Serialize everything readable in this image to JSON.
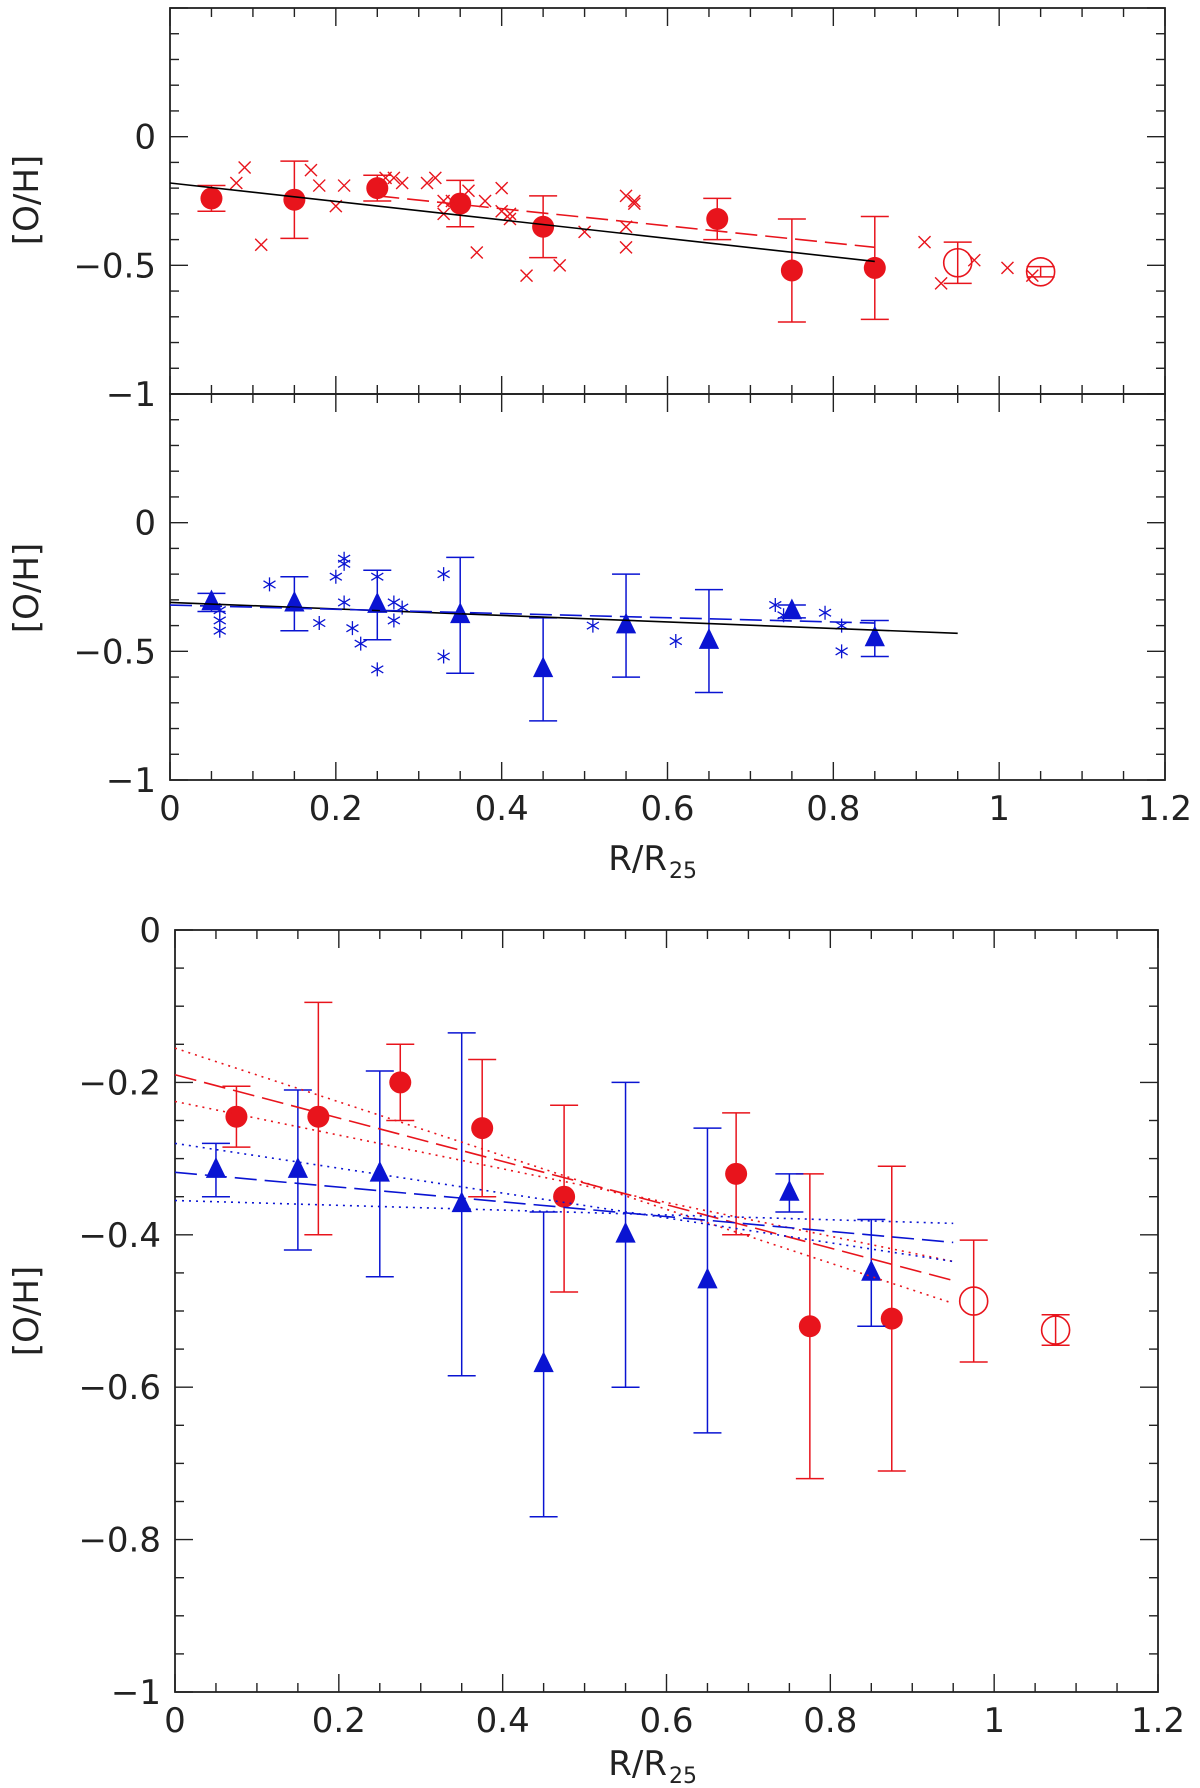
{
  "chart_data": [
    {
      "id": "panel-top",
      "type": "scatter",
      "title": "",
      "xlabel": "R/R",
      "xlabel_sub": "25",
      "ylabel": "[O/H]",
      "xlim": [
        0,
        1.2
      ],
      "ylim": [
        -1,
        0.5
      ],
      "y_ticks": [
        0,
        -0.5,
        -1
      ],
      "y_tick_labels": [
        "0",
        "−0.5",
        "−1"
      ],
      "show_x_tick_labels": false,
      "series": [
        {
          "name": "binned-circles",
          "marker": "filled-circle",
          "color": "#e8141c",
          "x": [
            0.05,
            0.15,
            0.25,
            0.35,
            0.45,
            0.66,
            0.75,
            0.85
          ],
          "y": [
            -0.24,
            -0.245,
            -0.2,
            -0.26,
            -0.35,
            -0.32,
            -0.52,
            -0.51
          ],
          "err": [
            0.05,
            0.15,
            0.05,
            0.09,
            0.12,
            0.08,
            0.2,
            0.2
          ]
        },
        {
          "name": "open-circles",
          "marker": "open-circle",
          "color": "#e8141c",
          "x": [
            0.95,
            1.05
          ],
          "y": [
            -0.49,
            -0.525
          ],
          "err": [
            0.08,
            0.02
          ]
        },
        {
          "name": "individual-x",
          "marker": "cross",
          "color": "#e8141c",
          "x": [
            0.08,
            0.09,
            0.11,
            0.17,
            0.18,
            0.2,
            0.21,
            0.26,
            0.27,
            0.28,
            0.31,
            0.32,
            0.33,
            0.33,
            0.34,
            0.36,
            0.37,
            0.38,
            0.4,
            0.4,
            0.41,
            0.41,
            0.43,
            0.47,
            0.5,
            0.55,
            0.55,
            0.55,
            0.56,
            0.56,
            0.91,
            0.93,
            0.97,
            1.01,
            1.04
          ],
          "y": [
            -0.18,
            -0.12,
            -0.42,
            -0.13,
            -0.19,
            -0.27,
            -0.19,
            -0.16,
            -0.16,
            -0.18,
            -0.18,
            -0.16,
            -0.25,
            -0.3,
            -0.25,
            -0.21,
            -0.45,
            -0.25,
            -0.2,
            -0.29,
            -0.3,
            -0.32,
            -0.54,
            -0.5,
            -0.37,
            -0.35,
            -0.43,
            -0.23,
            -0.25,
            -0.26,
            -0.41,
            -0.57,
            -0.48,
            -0.51,
            -0.54
          ]
        },
        {
          "name": "fit-solid",
          "line": "solid",
          "color": "#000000",
          "x": [
            0,
            0.85
          ],
          "y": [
            -0.18,
            -0.485
          ]
        },
        {
          "name": "fit-dashed",
          "line": "dashed",
          "color": "#e8141c",
          "x": [
            0.25,
            0.85
          ],
          "y": [
            -0.23,
            -0.43
          ]
        }
      ]
    },
    {
      "id": "panel-middle",
      "type": "scatter",
      "title": "",
      "xlabel": "R/R",
      "xlabel_sub": "25",
      "ylabel": "[O/H]",
      "xlim": [
        0,
        1.2
      ],
      "ylim": [
        -1,
        0.5
      ],
      "x_ticks": [
        0,
        0.2,
        0.4,
        0.6,
        0.8,
        1,
        1.2
      ],
      "x_tick_labels": [
        "0",
        "0.2",
        "0.4",
        "0.6",
        "0.8",
        "1",
        "1.2"
      ],
      "y_ticks": [
        0,
        -0.5,
        -1
      ],
      "y_tick_labels": [
        "0",
        "−0.5",
        "−1"
      ],
      "show_x_tick_labels": true,
      "series": [
        {
          "name": "binned-triangles",
          "marker": "filled-triangle",
          "color": "#0a14d2",
          "x": [
            0.05,
            0.15,
            0.25,
            0.35,
            0.45,
            0.55,
            0.65,
            0.75,
            0.85
          ],
          "y": [
            -0.31,
            -0.315,
            -0.32,
            -0.36,
            -0.57,
            -0.4,
            -0.46,
            -0.345,
            -0.45
          ],
          "err": [
            0.035,
            0.105,
            0.135,
            0.225,
            0.2,
            0.2,
            0.2,
            0.025,
            0.07
          ]
        },
        {
          "name": "individual-stars",
          "marker": "asterisk",
          "color": "#0a14d2",
          "x": [
            0.06,
            0.06,
            0.06,
            0.12,
            0.18,
            0.2,
            0.21,
            0.21,
            0.21,
            0.22,
            0.23,
            0.25,
            0.25,
            0.27,
            0.27,
            0.28,
            0.33,
            0.33,
            0.51,
            0.61,
            0.73,
            0.74,
            0.79,
            0.81,
            0.81
          ],
          "y": [
            -0.34,
            -0.38,
            -0.42,
            -0.24,
            -0.39,
            -0.21,
            -0.14,
            -0.16,
            -0.31,
            -0.41,
            -0.47,
            -0.21,
            -0.57,
            -0.31,
            -0.38,
            -0.33,
            -0.2,
            -0.52,
            -0.4,
            -0.46,
            -0.32,
            -0.36,
            -0.35,
            -0.4,
            -0.5
          ]
        },
        {
          "name": "fit-solid",
          "line": "solid",
          "color": "#000000",
          "x": [
            0,
            0.95
          ],
          "y": [
            -0.31,
            -0.43
          ]
        },
        {
          "name": "fit-dashed",
          "line": "dashed",
          "color": "#0a14d2",
          "x": [
            0,
            0.85
          ],
          "y": [
            -0.32,
            -0.39
          ]
        }
      ]
    },
    {
      "id": "panel-bottom",
      "type": "scatter",
      "title": "",
      "xlabel": "R/R",
      "xlabel_sub": "25",
      "ylabel": "[O/H]",
      "xlim": [
        0,
        1.2
      ],
      "ylim": [
        -1,
        0
      ],
      "x_ticks": [
        0,
        0.2,
        0.4,
        0.6,
        0.8,
        1,
        1.2
      ],
      "x_tick_labels": [
        "0",
        "0.2",
        "0.4",
        "0.6",
        "0.8",
        "1",
        "1.2"
      ],
      "y_ticks": [
        0,
        -0.2,
        -0.4,
        -0.6,
        -0.8,
        -1
      ],
      "y_tick_labels": [
        "0",
        "−0.2",
        "−0.4",
        "−0.6",
        "−0.8",
        "−1"
      ],
      "show_x_tick_labels": true,
      "series": [
        {
          "name": "binned-circles",
          "marker": "filled-circle",
          "color": "#e8141c",
          "x": [
            0.075,
            0.175,
            0.275,
            0.375,
            0.475,
            0.685,
            0.775,
            0.875
          ],
          "y": [
            -0.245,
            -0.245,
            -0.2,
            -0.26,
            -0.35,
            -0.32,
            -0.52,
            -0.51
          ],
          "err_up": [
            0.04,
            0.15,
            0.05,
            0.09,
            0.12,
            0.08,
            0.2,
            0.2
          ],
          "err_down": [
            0.04,
            0.155,
            0.05,
            0.09,
            0.125,
            0.08,
            0.2,
            0.2
          ]
        },
        {
          "name": "open-circles",
          "marker": "open-circle",
          "color": "#e8141c",
          "x": [
            0.975,
            1.075
          ],
          "y": [
            -0.487,
            -0.525
          ],
          "err": [
            0.08,
            0.02
          ]
        },
        {
          "name": "binned-triangles",
          "marker": "filled-triangle",
          "color": "#0a14d2",
          "x": [
            0.05,
            0.15,
            0.25,
            0.35,
            0.45,
            0.55,
            0.65,
            0.75,
            0.85
          ],
          "y": [
            -0.315,
            -0.315,
            -0.32,
            -0.36,
            -0.57,
            -0.4,
            -0.46,
            -0.345,
            -0.45
          ],
          "err": [
            0.035,
            0.105,
            0.135,
            0.225,
            0.2,
            0.2,
            0.2,
            0.025,
            0.07
          ]
        },
        {
          "name": "red-fit-dashed",
          "line": "dashed",
          "color": "#e8141c",
          "x": [
            0,
            0.95
          ],
          "y": [
            -0.19,
            -0.46
          ]
        },
        {
          "name": "red-fit-dotted-upper",
          "line": "dotted",
          "color": "#e8141c",
          "x": [
            0,
            0.95
          ],
          "y": [
            -0.155,
            -0.49
          ]
        },
        {
          "name": "red-fit-dotted-lower",
          "line": "dotted",
          "color": "#e8141c",
          "x": [
            0,
            0.95
          ],
          "y": [
            -0.225,
            -0.435
          ]
        },
        {
          "name": "blue-fit-dashed",
          "line": "dashed",
          "color": "#0a14d2",
          "x": [
            0,
            0.95
          ],
          "y": [
            -0.318,
            -0.41
          ]
        },
        {
          "name": "blue-fit-dotted-upper",
          "line": "dotted",
          "color": "#0a14d2",
          "x": [
            0,
            0.95
          ],
          "y": [
            -0.28,
            -0.435
          ]
        },
        {
          "name": "blue-fit-dotted-lower",
          "line": "dotted",
          "color": "#0a14d2",
          "x": [
            0,
            0.95
          ],
          "y": [
            -0.355,
            -0.385
          ]
        }
      ]
    }
  ]
}
